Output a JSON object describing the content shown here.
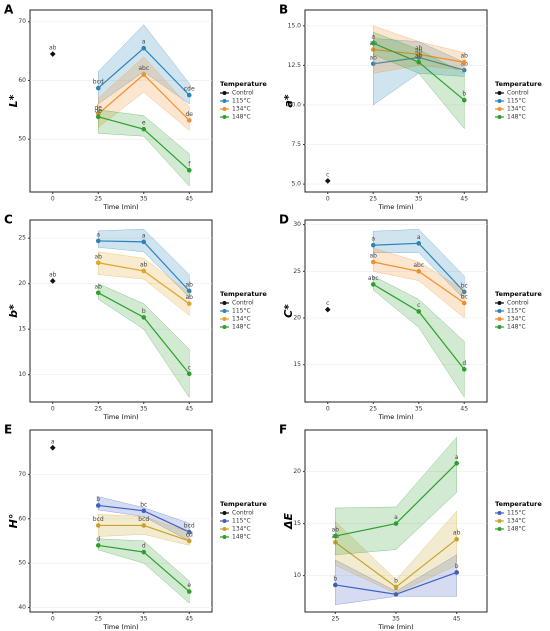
{
  "chart_data": [
    {
      "panel": "A",
      "type": "line",
      "y_label": "L*",
      "x_label": "Time (min)",
      "legend_title": "Temperature",
      "categories": [
        "0",
        "25",
        "35",
        "45"
      ],
      "ylim": [
        41,
        72
      ],
      "yticks": [
        50,
        60,
        70
      ],
      "series": [
        {
          "name": "Control",
          "color": "#111111",
          "values": [
            64.5,
            null,
            null,
            null
          ],
          "lower": [
            null,
            null,
            null,
            null
          ],
          "upper": [
            null,
            null,
            null,
            null
          ],
          "letters": [
            "ab",
            null,
            null,
            null
          ]
        },
        {
          "name": "115°C",
          "color": "#2b83ba",
          "values": [
            null,
            58.7,
            65.5,
            57.5
          ],
          "lower": [
            null,
            56,
            61.5,
            56
          ],
          "upper": [
            null,
            61.5,
            69.5,
            59.5
          ],
          "letters": [
            null,
            "bcd",
            "a",
            "cde"
          ]
        },
        {
          "name": "134°C",
          "color": "#f28e2b",
          "values": [
            null,
            54.3,
            61,
            53.2
          ],
          "lower": [
            null,
            52,
            58,
            51.5
          ],
          "upper": [
            null,
            57,
            64,
            55.5
          ],
          "letters": [
            null,
            "de",
            "abc",
            "de"
          ]
        },
        {
          "name": "148°C",
          "color": "#2ca02c",
          "values": [
            null,
            53.8,
            51.7,
            44.7
          ],
          "lower": [
            null,
            51,
            50.5,
            42
          ],
          "upper": [
            null,
            55,
            54,
            47.5
          ],
          "letters": [
            null,
            "de",
            "e",
            "f"
          ]
        }
      ]
    },
    {
      "panel": "B",
      "type": "line",
      "y_label": "a*",
      "x_label": "Time (min)",
      "legend_title": "Temperature",
      "categories": [
        "0",
        "25",
        "35",
        "45"
      ],
      "ylim": [
        4.5,
        16
      ],
      "yticks": [
        {
          "value": 5,
          "label": "5.0"
        },
        7.5,
        {
          "value": 10,
          "label": "10.0"
        },
        12.5,
        {
          "value": 15,
          "label": "15.0"
        }
      ],
      "series": [
        {
          "name": "Control",
          "color": "#111111",
          "values": [
            5.2,
            null,
            null,
            null
          ],
          "lower": [
            null,
            null,
            null,
            null
          ],
          "upper": [
            null,
            null,
            null,
            null
          ],
          "letters": [
            "c",
            null,
            null,
            null
          ]
        },
        {
          "name": "115°C",
          "color": "#2b83ba",
          "values": [
            null,
            12.6,
            13.0,
            12.2
          ],
          "lower": [
            null,
            10.0,
            12.0,
            11.8
          ],
          "upper": [
            null,
            14.2,
            14.0,
            12.7
          ],
          "letters": [
            null,
            "ab",
            "ab",
            "ab"
          ]
        },
        {
          "name": "134°C",
          "color": "#f28e2b",
          "values": [
            null,
            13.5,
            13.2,
            12.7
          ],
          "lower": [
            null,
            12.0,
            12.5,
            12.2
          ],
          "upper": [
            null,
            15.0,
            14.0,
            13.3
          ],
          "letters": [
            null,
            "ab",
            "ab",
            "ab"
          ]
        },
        {
          "name": "148°C",
          "color": "#2ca02c",
          "values": [
            null,
            13.9,
            12.7,
            10.3
          ],
          "lower": [
            null,
            13.2,
            12.0,
            8.5
          ],
          "upper": [
            null,
            14.6,
            13.5,
            12.0
          ],
          "letters": [
            null,
            "a",
            "ab",
            "b"
          ]
        }
      ]
    },
    {
      "panel": "C",
      "type": "line",
      "y_label": "b*",
      "x_label": "Time (min)",
      "legend_title": "Temperature",
      "categories": [
        "0",
        "25",
        "35",
        "45"
      ],
      "ylim": [
        7,
        27
      ],
      "yticks": [
        10,
        15,
        20,
        25
      ],
      "series": [
        {
          "name": "Control",
          "color": "#111111",
          "values": [
            20.3,
            null,
            null,
            null
          ],
          "lower": [
            null,
            null,
            null,
            null
          ],
          "upper": [
            null,
            null,
            null,
            null
          ],
          "letters": [
            "ab",
            null,
            null,
            null
          ]
        },
        {
          "name": "115°C",
          "color": "#2b83ba",
          "values": [
            null,
            24.7,
            24.6,
            19.2
          ],
          "lower": [
            null,
            24.0,
            23.5,
            18.5
          ],
          "upper": [
            null,
            25.8,
            26.0,
            21.0
          ],
          "letters": [
            null,
            "a",
            "a",
            "ab"
          ]
        },
        {
          "name": "134°C",
          "color": "#e0a526",
          "values": [
            null,
            22.3,
            21.4,
            17.8
          ],
          "lower": [
            null,
            21.0,
            20.5,
            16.5
          ],
          "upper": [
            null,
            23.5,
            22.8,
            19.0
          ],
          "letters": [
            null,
            "ab",
            "ab",
            "ab"
          ]
        },
        {
          "name": "148°C",
          "color": "#2ca02c",
          "values": [
            null,
            19.0,
            16.3,
            10.1
          ],
          "lower": [
            null,
            18.3,
            15.0,
            7.5
          ],
          "upper": [
            null,
            20.0,
            17.8,
            12.8
          ],
          "letters": [
            null,
            "ab",
            "b",
            "c"
          ]
        }
      ]
    },
    {
      "panel": "D",
      "type": "line",
      "y_label": "C*",
      "x_label": "Time (min)",
      "legend_title": "Temperature",
      "categories": [
        "0",
        "25",
        "35",
        "45"
      ],
      "ylim": [
        11,
        30.5
      ],
      "yticks": [
        15,
        20,
        25,
        30
      ],
      "series": [
        {
          "name": "Control",
          "color": "#111111",
          "values": [
            20.9,
            null,
            null,
            null
          ],
          "lower": [
            null,
            null,
            null,
            null
          ],
          "upper": [
            null,
            null,
            null,
            null
          ],
          "letters": [
            "c",
            null,
            null,
            null
          ]
        },
        {
          "name": "115°C",
          "color": "#2b83ba",
          "values": [
            null,
            27.8,
            28.0,
            22.8
          ],
          "lower": [
            null,
            27.0,
            27.0,
            22.0
          ],
          "upper": [
            null,
            29.3,
            29.5,
            24.5
          ],
          "letters": [
            null,
            "a",
            "a",
            "bc"
          ]
        },
        {
          "name": "134°C",
          "color": "#f28e2b",
          "values": [
            null,
            26.0,
            25.0,
            21.6
          ],
          "lower": [
            null,
            25.0,
            24.0,
            20.0
          ],
          "upper": [
            null,
            27.5,
            26.0,
            23.0
          ],
          "letters": [
            null,
            "ab",
            "abc",
            "bc"
          ]
        },
        {
          "name": "148°C",
          "color": "#2ca02c",
          "values": [
            null,
            23.6,
            20.7,
            14.5
          ],
          "lower": [
            null,
            23.0,
            19.0,
            11.5
          ],
          "upper": [
            null,
            24.5,
            22.0,
            17.5
          ],
          "letters": [
            null,
            "abc",
            "c",
            "d"
          ]
        }
      ]
    },
    {
      "panel": "E",
      "type": "line",
      "y_label": "H°",
      "x_label": "Time (min)",
      "legend_title": "Temperature",
      "categories": [
        "0",
        "25",
        "35",
        "45"
      ],
      "ylim": [
        39,
        80
      ],
      "yticks": [
        40,
        50,
        60,
        70
      ],
      "series": [
        {
          "name": "Control",
          "color": "#111111",
          "values": [
            76,
            null,
            null,
            null
          ],
          "lower": [
            null,
            null,
            null,
            null
          ],
          "upper": [
            null,
            null,
            null,
            null
          ],
          "letters": [
            "a",
            null,
            null,
            null
          ]
        },
        {
          "name": "115°C",
          "color": "#3f5fc0",
          "values": [
            null,
            63,
            61.8,
            57
          ],
          "lower": [
            null,
            62,
            60.5,
            55
          ],
          "upper": [
            null,
            65,
            62.5,
            59
          ],
          "letters": [
            null,
            "b",
            "bc",
            "bcd"
          ]
        },
        {
          "name": "134°C",
          "color": "#c9a227",
          "values": [
            null,
            58.5,
            58.5,
            55
          ],
          "lower": [
            null,
            56,
            56.5,
            54
          ],
          "upper": [
            null,
            61,
            60.5,
            57
          ],
          "letters": [
            null,
            "bcd",
            "bcd",
            "cd"
          ]
        },
        {
          "name": "148°C",
          "color": "#2ca02c",
          "values": [
            null,
            54,
            52.5,
            43.6
          ],
          "lower": [
            null,
            53,
            50,
            41
          ],
          "upper": [
            null,
            55.5,
            55,
            46
          ],
          "letters": [
            null,
            "d",
            "d",
            "e"
          ]
        }
      ]
    },
    {
      "panel": "F",
      "type": "line",
      "y_label": "ΔE",
      "x_label": "Time (min)",
      "legend_title": "Temperature",
      "categories": [
        "25",
        "35",
        "45"
      ],
      "ylim": [
        6.5,
        24
      ],
      "yticks": [
        10,
        15,
        20
      ],
      "series": [
        {
          "name": "115°C",
          "color": "#3f5fc0",
          "values": [
            9.1,
            8.2,
            10.3
          ],
          "lower": [
            7.2,
            8.0,
            8.0
          ],
          "upper": [
            11.5,
            8.5,
            12.0
          ],
          "letters": [
            "b",
            "b",
            "b"
          ]
        },
        {
          "name": "134°C",
          "color": "#c9a227",
          "values": [
            13.2,
            8.9,
            13.5
          ],
          "lower": [
            11.0,
            8.3,
            11.0
          ],
          "upper": [
            15.2,
            9.6,
            16.2
          ],
          "letters": [
            "ab",
            "b",
            "ab"
          ]
        },
        {
          "name": "148°C",
          "color": "#2ca02c",
          "values": [
            13.8,
            15.0,
            20.8
          ],
          "lower": [
            12.0,
            12.5,
            18.0
          ],
          "upper": [
            16.5,
            16.6,
            23.3
          ],
          "letters": [
            "ab",
            "a",
            "a"
          ]
        }
      ]
    }
  ]
}
